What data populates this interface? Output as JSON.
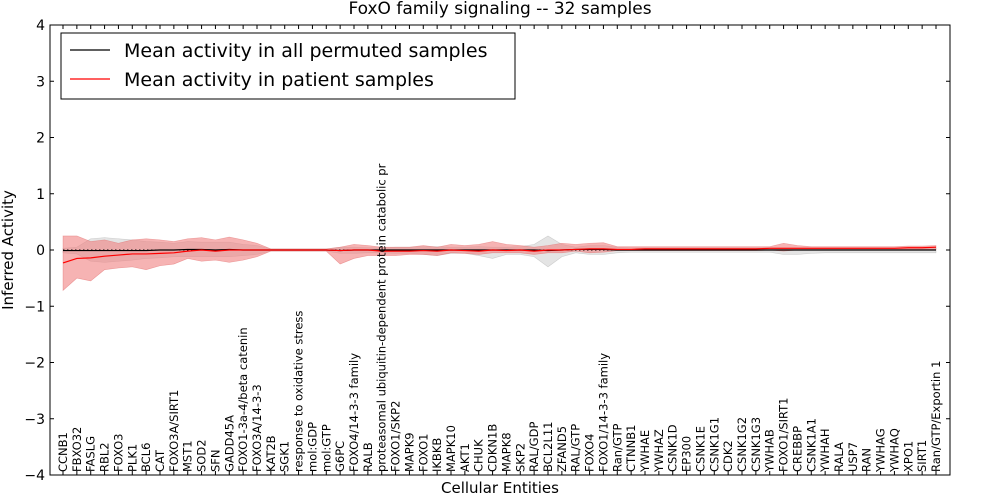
{
  "chart_data": {
    "type": "line",
    "title": "FoxO family signaling -- 32 samples",
    "xlabel": "Cellular Entities",
    "ylabel": "Inferred Activity",
    "ylim": [
      -4,
      4
    ],
    "yticks": [
      "4",
      "3",
      "2",
      "1",
      "0",
      "−1",
      "−2",
      "−3",
      "−4"
    ],
    "legend_position": "top-left",
    "categories": [
      "CCNB1",
      "FBXO32",
      "FASLG",
      "RBL2",
      "FOXO3",
      "PLK1",
      "BCL6",
      "CAT",
      "FOXO3A/SIRT1",
      "MST1",
      "SOD2",
      "SFN",
      "GADD45A",
      "FOXO1-3a-4/beta catenin",
      "FOXO3A/14-3-3",
      "KAT2B",
      "SGK1",
      "response to oxidative stress",
      "mol:GDP",
      "mol:GTP",
      "G6PC",
      "FOXO4/14-3-3 family",
      "RALB",
      "proteasomal ubiquitin-dependent protein catabolic pr",
      "FOXO1/SKP2",
      "MAPK9",
      "FOXO1",
      "IKBKB",
      "MAPK10",
      "AKT1",
      "CHUK",
      "CDKN1B",
      "MAPK8",
      "SKP2",
      "RAL/GDP",
      "BCL2L11",
      "ZFAND5",
      "RAL/GTP",
      "FOXO4",
      "FOXO1/14-3-3 family",
      "Ran/GTP",
      "CTNNB1",
      "YWHAE",
      "YWHAZ",
      "CSNK1D",
      "EP300",
      "CSNK1E",
      "CSNK1G1",
      "CDK2",
      "CSNK1G2",
      "CSNK1G3",
      "YWHAB",
      "FOXO1/SIRT1",
      "CREBBP",
      "CSNK1A1",
      "YWHAH",
      "RALA",
      "USP7",
      "RAN",
      "YWHAG",
      "YWHAQ",
      "XPO1",
      "SIRT1",
      "Ran/GTP/Exportin 1"
    ],
    "series": [
      {
        "name": "Mean activity in all permuted samples",
        "color": "#000000",
        "values": [
          -0.01,
          -0.01,
          -0.01,
          -0.01,
          -0.01,
          -0.01,
          -0.01,
          0,
          0,
          0.01,
          0.01,
          0,
          0.01,
          0,
          0,
          0,
          0,
          0,
          0,
          0,
          -0.01,
          0,
          0,
          0,
          0,
          0,
          0,
          0,
          0,
          0,
          0,
          0,
          0,
          0,
          0,
          -0.01,
          0,
          0.01,
          0.01,
          0.01,
          0,
          0,
          0,
          0,
          0,
          0,
          0,
          0,
          0,
          0,
          0,
          0,
          0,
          0,
          0,
          0,
          0,
          0,
          0,
          0,
          0,
          0,
          0,
          0
        ],
        "band_upper": [
          0.03,
          0.05,
          0.2,
          0.22,
          0.2,
          0.18,
          0.15,
          0.14,
          0.12,
          0.15,
          0.14,
          0.14,
          0.14,
          0.1,
          0.08,
          0.02,
          0.02,
          0.02,
          0.02,
          0.02,
          0.05,
          0.05,
          0.04,
          0.04,
          0.05,
          0.05,
          0.06,
          0.06,
          0.05,
          0.05,
          0.06,
          0.05,
          0.05,
          0.06,
          0.1,
          0.25,
          0.1,
          0.05,
          0.08,
          0.08,
          0.05,
          0.04,
          0.04,
          0.04,
          0.04,
          0.04,
          0.04,
          0.04,
          0.04,
          0.04,
          0.04,
          0.04,
          0.04,
          0.04,
          0.04,
          0.04,
          0.04,
          0.04,
          0.04,
          0.04,
          0.04,
          0.04,
          0.04,
          0.04
        ],
        "band_lower": [
          -0.05,
          -0.07,
          -0.2,
          -0.22,
          -0.2,
          -0.18,
          -0.15,
          -0.14,
          -0.12,
          -0.12,
          -0.12,
          -0.12,
          -0.12,
          -0.1,
          -0.08,
          -0.02,
          -0.02,
          -0.02,
          -0.02,
          -0.02,
          -0.06,
          -0.06,
          -0.05,
          -0.05,
          -0.06,
          -0.06,
          -0.08,
          -0.1,
          -0.06,
          -0.06,
          -0.1,
          -0.15,
          -0.08,
          -0.08,
          -0.12,
          -0.3,
          -0.12,
          -0.05,
          -0.08,
          -0.08,
          -0.05,
          -0.04,
          -0.04,
          -0.04,
          -0.04,
          -0.04,
          -0.04,
          -0.04,
          -0.04,
          -0.04,
          -0.04,
          -0.04,
          -0.08,
          -0.08,
          -0.06,
          -0.05,
          -0.05,
          -0.05,
          -0.05,
          -0.05,
          -0.05,
          -0.05,
          -0.05,
          -0.05
        ]
      },
      {
        "name": "Mean activity in patient samples",
        "color": "#ff0000",
        "band_color": "#f08080",
        "values": [
          -0.23,
          -0.15,
          -0.14,
          -0.11,
          -0.09,
          -0.07,
          -0.07,
          -0.06,
          -0.05,
          -0.02,
          0,
          -0.02,
          0,
          0,
          0,
          0,
          0,
          0,
          0,
          0,
          -0.01,
          0,
          0,
          -0.02,
          -0.02,
          -0.02,
          -0.01,
          -0.02,
          0,
          -0.01,
          -0.02,
          0,
          -0.01,
          0,
          -0.02,
          0,
          0,
          0.01,
          0.02,
          0.02,
          0.01,
          0.01,
          0.02,
          0.02,
          0.02,
          0.02,
          0.02,
          0.02,
          0.02,
          0.02,
          0.02,
          0.03,
          0.03,
          0.03,
          0.03,
          0.03,
          0.03,
          0.03,
          0.03,
          0.03,
          0.03,
          0.04,
          0.04,
          0.05
        ],
        "band_upper": [
          0.25,
          0.25,
          0.15,
          0.18,
          0.12,
          0.18,
          0.2,
          0.18,
          0.15,
          0.2,
          0.22,
          0.18,
          0.23,
          0.18,
          0.12,
          0.02,
          0.02,
          0.02,
          0.02,
          0.02,
          0.05,
          0.1,
          0.08,
          0.05,
          0.05,
          0.05,
          0.08,
          0.05,
          0.1,
          0.08,
          0.1,
          0.15,
          0.1,
          0.08,
          0.05,
          0.08,
          0.12,
          0.1,
          0.12,
          0.13,
          0.06,
          0.06,
          0.06,
          0.06,
          0.06,
          0.06,
          0.06,
          0.06,
          0.06,
          0.06,
          0.06,
          0.06,
          0.12,
          0.08,
          0.06,
          0.06,
          0.06,
          0.06,
          0.06,
          0.06,
          0.06,
          0.07,
          0.07,
          0.08
        ],
        "band_lower": [
          -0.72,
          -0.5,
          -0.55,
          -0.35,
          -0.32,
          -0.3,
          -0.35,
          -0.28,
          -0.25,
          -0.15,
          -0.2,
          -0.18,
          -0.22,
          -0.18,
          -0.12,
          -0.02,
          -0.02,
          -0.02,
          -0.02,
          -0.02,
          -0.25,
          -0.15,
          -0.1,
          -0.1,
          -0.1,
          -0.08,
          -0.08,
          -0.1,
          -0.05,
          -0.06,
          -0.08,
          -0.05,
          -0.05,
          -0.05,
          -0.08,
          -0.05,
          -0.05,
          -0.02,
          -0.05,
          -0.04,
          -0.01,
          -0.01,
          -0.01,
          -0.01,
          -0.01,
          -0.01,
          -0.01,
          -0.01,
          -0.01,
          -0.01,
          -0.01,
          0,
          -0.02,
          0,
          0,
          0,
          0,
          0,
          0,
          0,
          0,
          0,
          0,
          0
        ]
      }
    ]
  }
}
